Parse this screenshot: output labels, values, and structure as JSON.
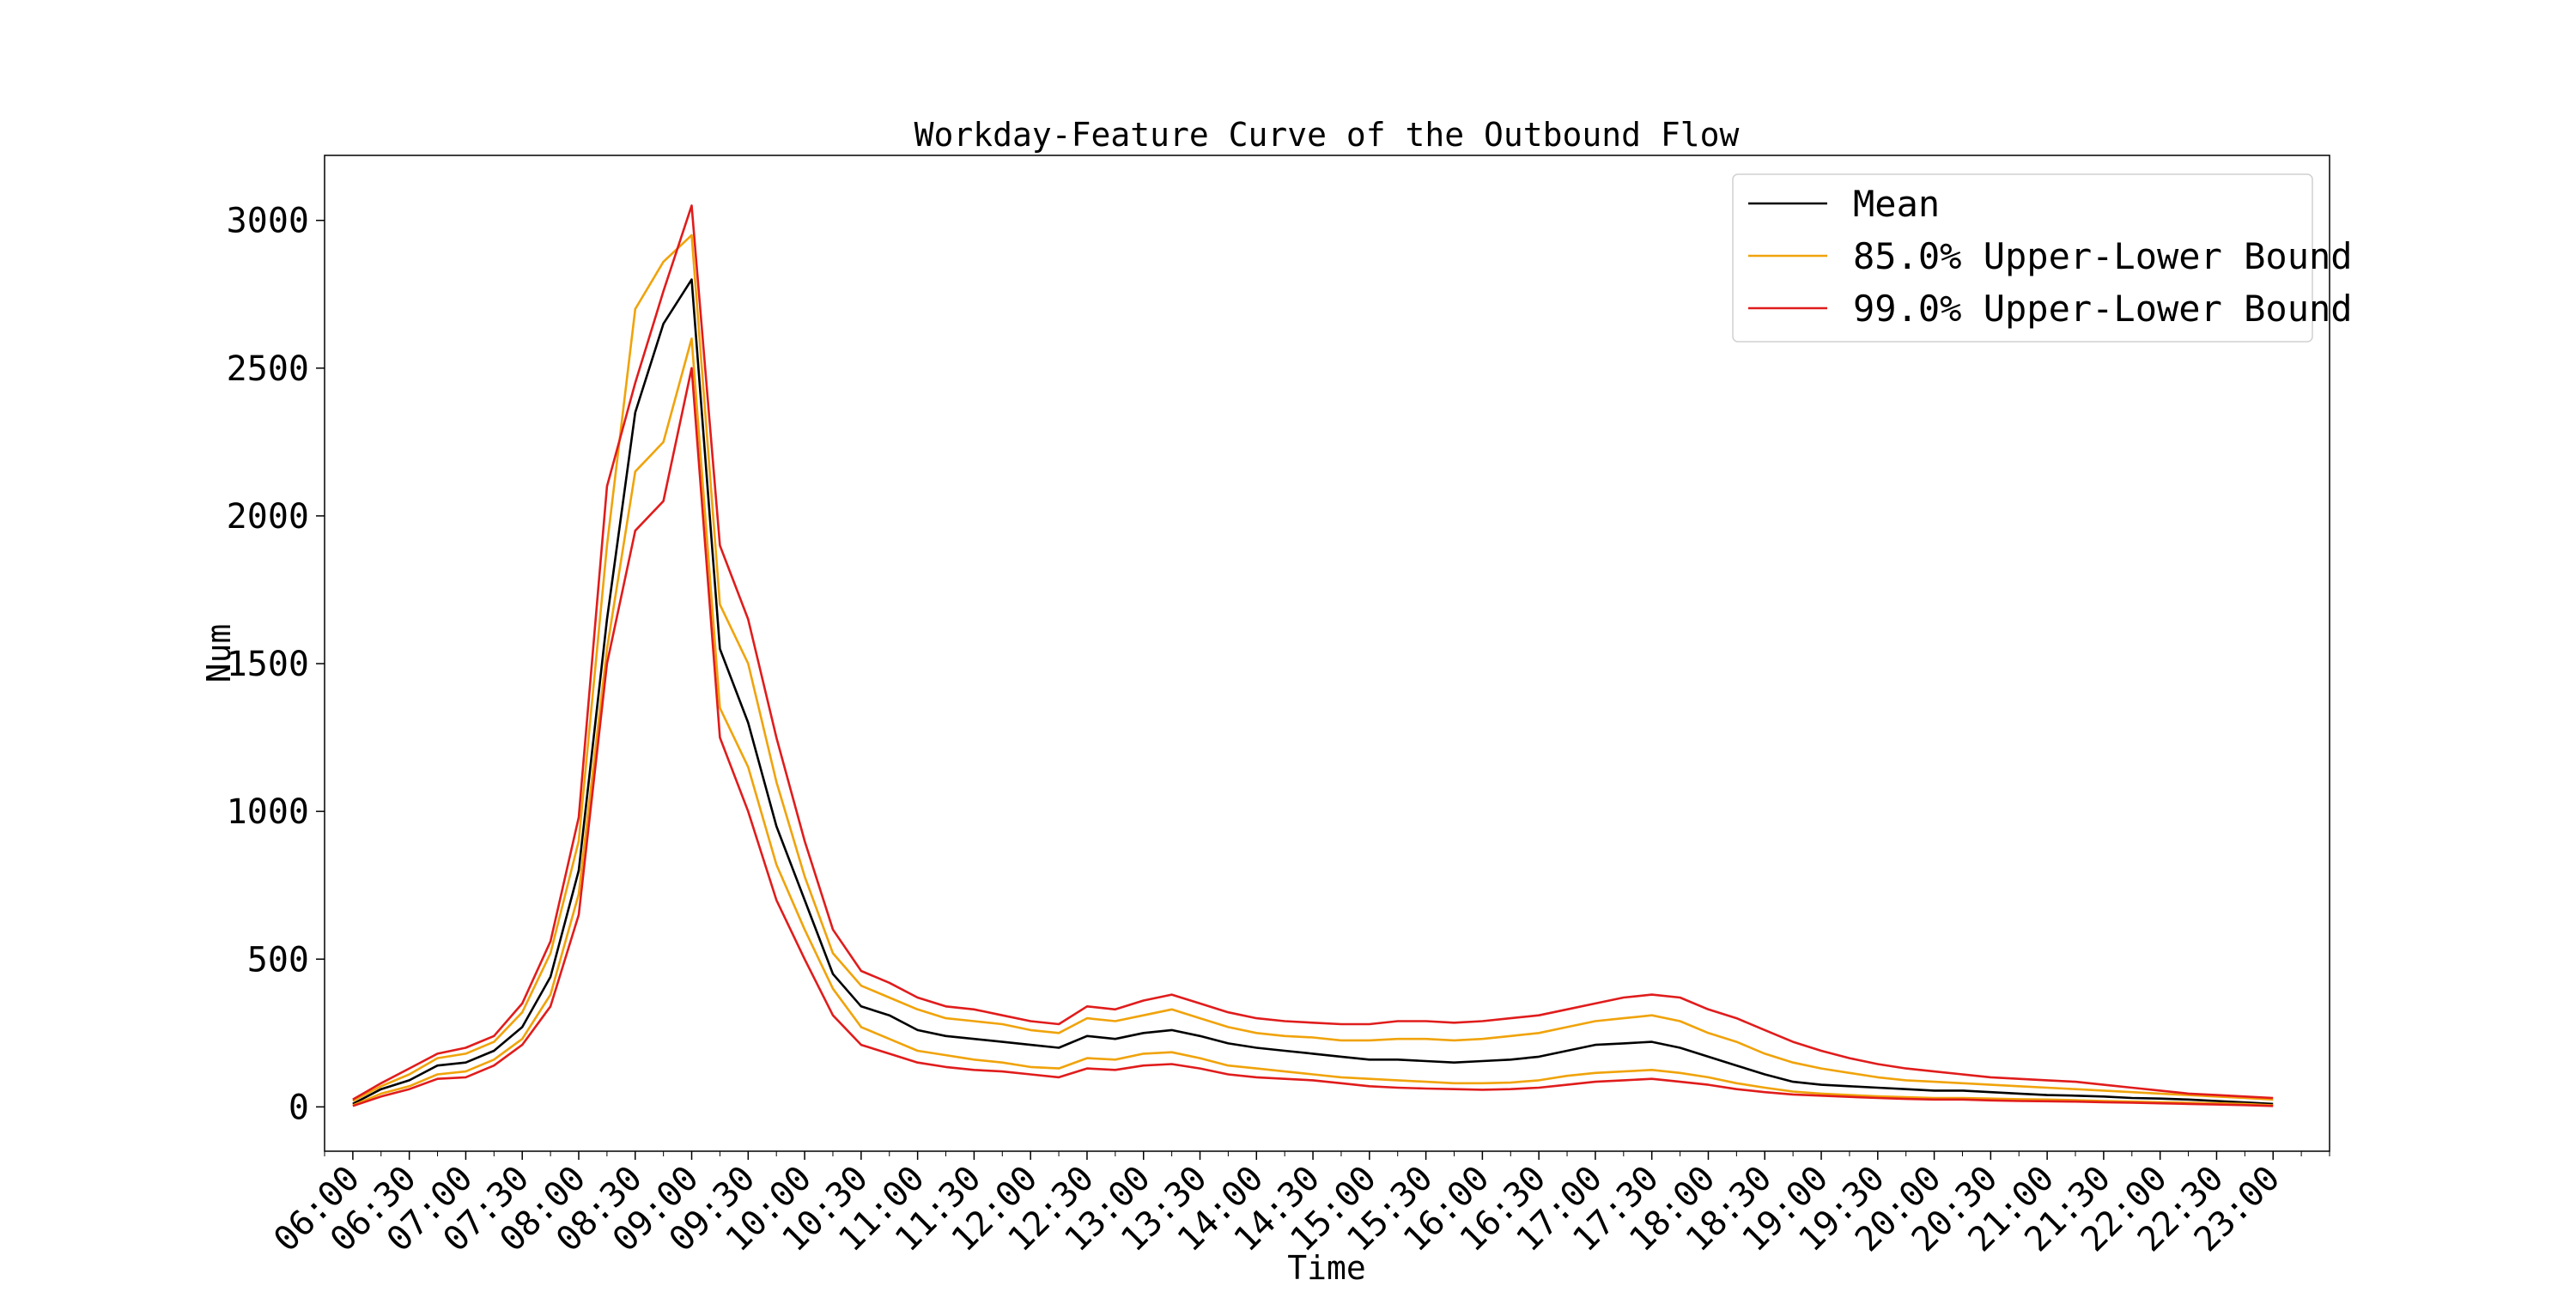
{
  "chart_data": {
    "type": "line",
    "title": "Workday-Feature Curve of the Outbound Flow",
    "xlabel": "Time",
    "ylabel": "Num",
    "xlim": [
      "05:45",
      "23:30"
    ],
    "ylim": [
      -150,
      3220
    ],
    "grid": false,
    "legend_position": "top-right",
    "x_ticks": [
      "06:00",
      "06:30",
      "07:00",
      "07:30",
      "08:00",
      "08:30",
      "09:00",
      "09:30",
      "10:00",
      "10:30",
      "11:00",
      "11:30",
      "12:00",
      "12:30",
      "13:00",
      "13:30",
      "14:00",
      "14:30",
      "15:00",
      "15:30",
      "16:00",
      "16:30",
      "17:00",
      "17:30",
      "18:00",
      "18:30",
      "19:00",
      "19:30",
      "20:00",
      "20:30",
      "21:00",
      "21:30",
      "22:00",
      "22:30",
      "23:00"
    ],
    "y_ticks": [
      0,
      500,
      1000,
      1500,
      2000,
      2500,
      3000
    ],
    "x": [
      "06:00",
      "06:15",
      "06:30",
      "06:45",
      "07:00",
      "07:15",
      "07:30",
      "07:45",
      "08:00",
      "08:15",
      "08:30",
      "08:45",
      "09:00",
      "09:15",
      "09:30",
      "09:45",
      "10:00",
      "10:15",
      "10:30",
      "10:45",
      "11:00",
      "11:15",
      "11:30",
      "11:45",
      "12:00",
      "12:15",
      "12:30",
      "12:45",
      "13:00",
      "13:15",
      "13:30",
      "13:45",
      "14:00",
      "14:15",
      "14:30",
      "14:45",
      "15:00",
      "15:15",
      "15:30",
      "15:45",
      "16:00",
      "16:15",
      "16:30",
      "16:45",
      "17:00",
      "17:15",
      "17:30",
      "17:45",
      "18:00",
      "18:15",
      "18:30",
      "18:45",
      "19:00",
      "19:15",
      "19:30",
      "19:45",
      "20:00",
      "20:15",
      "20:30",
      "20:45",
      "21:00",
      "21:15",
      "21:30",
      "21:45",
      "22:00",
      "22:15",
      "22:30",
      "22:45",
      "23:00"
    ],
    "series": [
      {
        "name": "Mean",
        "color": "#000000",
        "values": [
          10,
          60,
          90,
          140,
          150,
          190,
          270,
          440,
          800,
          1650,
          2350,
          2650,
          2800,
          1550,
          1300,
          950,
          700,
          450,
          340,
          310,
          260,
          240,
          230,
          220,
          210,
          200,
          240,
          230,
          250,
          260,
          240,
          215,
          200,
          190,
          180,
          170,
          160,
          160,
          155,
          150,
          155,
          160,
          170,
          190,
          210,
          215,
          220,
          200,
          170,
          140,
          110,
          85,
          75,
          70,
          65,
          60,
          55,
          55,
          50,
          45,
          40,
          38,
          35,
          30,
          28,
          25,
          20,
          15,
          10
        ]
      },
      {
        "name": "85.0% Upper-Lower Bound",
        "color": "#f0a30a",
        "values": [
          20,
          70,
          110,
          165,
          180,
          220,
          320,
          520,
          900,
          1900,
          2700,
          2860,
          2950,
          1700,
          1500,
          1100,
          780,
          520,
          410,
          370,
          330,
          300,
          290,
          280,
          260,
          250,
          300,
          290,
          310,
          330,
          300,
          270,
          250,
          240,
          235,
          225,
          225,
          230,
          230,
          225,
          230,
          240,
          250,
          270,
          290,
          300,
          310,
          290,
          250,
          220,
          180,
          150,
          130,
          115,
          100,
          90,
          85,
          80,
          75,
          70,
          65,
          60,
          55,
          50,
          45,
          40,
          35,
          30,
          25
        ]
      },
      {
        "name": "",
        "color": "#f0a30a",
        "values": [
          5,
          45,
          70,
          110,
          120,
          160,
          230,
          380,
          720,
          1550,
          2150,
          2250,
          2600,
          1350,
          1150,
          820,
          600,
          400,
          270,
          230,
          190,
          175,
          160,
          150,
          135,
          130,
          165,
          160,
          180,
          185,
          165,
          140,
          130,
          120,
          110,
          100,
          95,
          90,
          85,
          80,
          80,
          82,
          90,
          105,
          115,
          120,
          125,
          115,
          100,
          80,
          65,
          52,
          45,
          40,
          36,
          33,
          30,
          30,
          28,
          26,
          25,
          23,
          20,
          18,
          16,
          14,
          12,
          10,
          5
        ]
      },
      {
        "name": "99.0% Upper-Lower Bound",
        "color": "#e01c1c",
        "values": [
          25,
          80,
          130,
          180,
          200,
          240,
          350,
          560,
          980,
          2100,
          2450,
          2760,
          3050,
          1900,
          1650,
          1250,
          900,
          600,
          460,
          420,
          370,
          340,
          330,
          310,
          290,
          280,
          340,
          330,
          360,
          380,
          350,
          320,
          300,
          290,
          285,
          280,
          280,
          290,
          290,
          285,
          290,
          300,
          310,
          330,
          350,
          370,
          380,
          370,
          330,
          300,
          260,
          220,
          190,
          165,
          145,
          130,
          120,
          110,
          100,
          95,
          90,
          85,
          75,
          65,
          55,
          45,
          40,
          35,
          30
        ]
      },
      {
        "name": "",
        "color": "#e01c1c",
        "values": [
          3,
          35,
          60,
          95,
          100,
          140,
          210,
          340,
          650,
          1500,
          1950,
          2050,
          2500,
          1250,
          1000,
          700,
          500,
          310,
          210,
          180,
          150,
          135,
          125,
          120,
          110,
          100,
          130,
          125,
          140,
          145,
          130,
          110,
          100,
          95,
          90,
          80,
          70,
          65,
          62,
          60,
          58,
          60,
          65,
          75,
          85,
          90,
          95,
          85,
          75,
          60,
          50,
          42,
          38,
          34,
          30,
          27,
          25,
          25,
          22,
          20,
          19,
          18,
          16,
          14,
          12,
          10,
          8,
          6,
          3
        ]
      }
    ]
  }
}
